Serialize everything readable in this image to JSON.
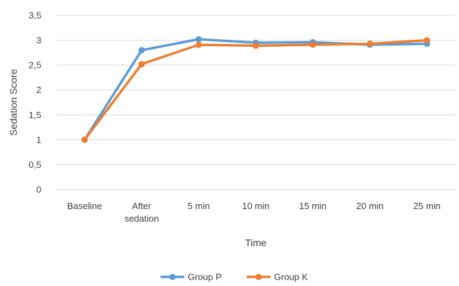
{
  "chart_data": {
    "type": "line",
    "title": "",
    "xlabel": "Time",
    "ylabel": "Sedation Score",
    "categories": [
      [
        "Baseline"
      ],
      [
        "After",
        "sedation"
      ],
      [
        "5 min"
      ],
      [
        "10 min"
      ],
      [
        "15 min"
      ],
      [
        "20 min"
      ],
      [
        "25 min"
      ]
    ],
    "yticks": [
      "0",
      "0,5",
      "1",
      "1,5",
      "2",
      "2,5",
      "3",
      "3,5"
    ],
    "ylim": [
      0,
      3.5
    ],
    "grid": true,
    "legend_position": "bottom",
    "series": [
      {
        "name": "Group P",
        "color": "#5b9bd5",
        "values": [
          1.0,
          2.8,
          3.02,
          2.95,
          2.96,
          2.91,
          2.93
        ]
      },
      {
        "name": "Group K",
        "color": "#ed7d31",
        "values": [
          1.0,
          2.52,
          2.91,
          2.89,
          2.91,
          2.93,
          3.0
        ]
      }
    ]
  }
}
